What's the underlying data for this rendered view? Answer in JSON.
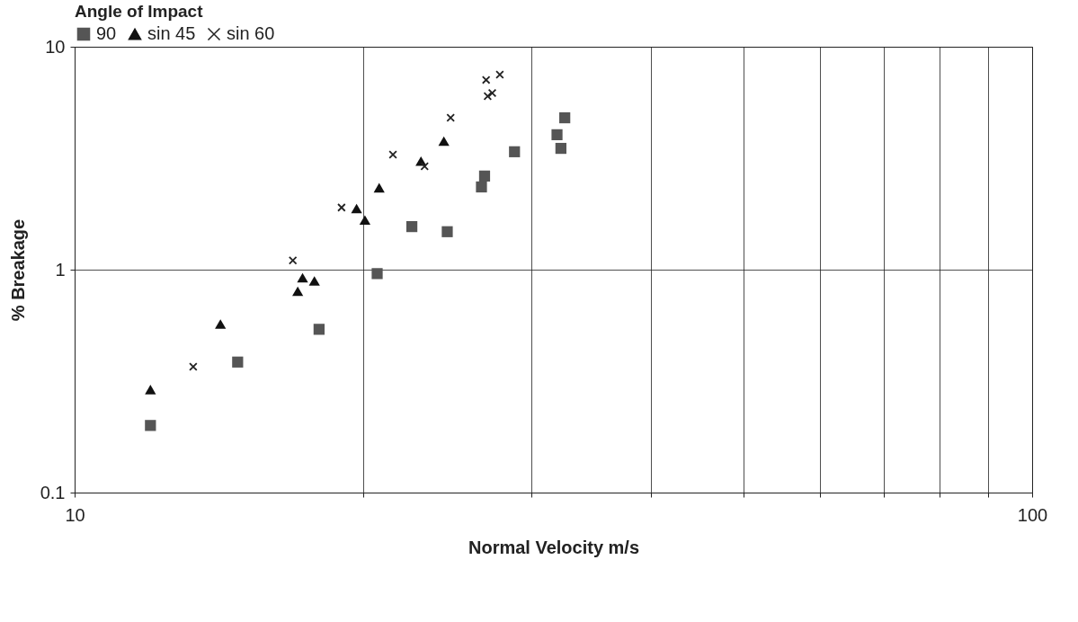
{
  "chart_data": {
    "type": "scatter",
    "xlabel": "Normal Velocity m/s",
    "ylabel": "% Breakage",
    "legend_title": "Angle of Impact",
    "legend": "top left",
    "grid": true,
    "log": "xy",
    "xlim": [
      10,
      100
    ],
    "ylim": [
      0.1,
      10
    ],
    "xticks": [
      10,
      {
        "value": 20,
        "label": null
      },
      {
        "value": 30,
        "label": null
      },
      {
        "value": 40,
        "label": null
      },
      {
        "value": 50,
        "label": null
      },
      {
        "value": 60,
        "label": null
      },
      {
        "value": 70,
        "label": null
      },
      {
        "value": 80,
        "label": null
      },
      {
        "value": 90,
        "label": null
      },
      100
    ],
    "yticks": [
      0.1,
      1,
      10
    ],
    "series": [
      {
        "name": "90",
        "color": "#555555",
        "marker": "square",
        "x": [
          12.0,
          14.8,
          18.0,
          20.7,
          22.5,
          24.5,
          26.6,
          26.8,
          28.8,
          31.9,
          32.2,
          32.5
        ],
        "values": [
          0.2,
          0.385,
          0.54,
          0.96,
          1.56,
          1.48,
          2.35,
          2.63,
          3.38,
          4.03,
          3.5,
          4.8
        ]
      },
      {
        "name": "sin 45",
        "color": "#111111",
        "marker": "triangle",
        "x": [
          12.0,
          14.2,
          17.1,
          17.3,
          17.8,
          19.7,
          20.1,
          20.8,
          23.0,
          24.3
        ],
        "values": [
          0.29,
          0.57,
          0.8,
          0.92,
          0.89,
          1.88,
          1.67,
          2.33,
          3.07,
          3.77
        ]
      },
      {
        "name": "sin 60",
        "color": "#222222",
        "marker": "cross",
        "x": [
          13.3,
          16.9,
          19.0,
          21.5,
          23.2,
          24.7,
          26.9,
          27.8,
          27.0,
          27.3
        ],
        "values": [
          0.367,
          1.1,
          1.9,
          3.28,
          2.91,
          4.8,
          7.1,
          7.5,
          6.0,
          6.2
        ]
      }
    ]
  }
}
